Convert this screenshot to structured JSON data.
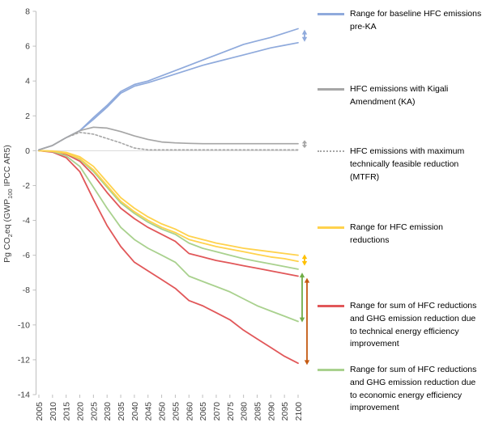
{
  "chart_data": {
    "type": "line",
    "title": "",
    "xlabel": "",
    "ylabel": "Pg CO2eq (GWP100 IPCC AR5)",
    "ylabel_parts": {
      "p1": "Pg CO",
      "s1": "2",
      "p2": "eq (GWP",
      "s2": "100",
      "p3": " IPCC AR5)"
    },
    "x": [
      2005,
      2010,
      2015,
      2020,
      2025,
      2030,
      2035,
      2040,
      2045,
      2050,
      2055,
      2060,
      2065,
      2070,
      2075,
      2080,
      2085,
      2090,
      2095,
      2100
    ],
    "ylim": [
      -14,
      8
    ],
    "yticks": [
      8,
      6,
      4,
      2,
      0,
      -2,
      -4,
      -6,
      -8,
      -10,
      -12,
      -14
    ],
    "grid": "zero-line-only",
    "legend_position": "right",
    "series": [
      {
        "name": "technical-ee-low",
        "color": "#e15759",
        "dash": "solid",
        "width": 1.8,
        "values": [
          0,
          -0.08,
          -0.4,
          -1.2,
          -2.8,
          -4.3,
          -5.5,
          -6.4,
          -6.9,
          -7.4,
          -7.9,
          -8.6,
          -8.9,
          -9.3,
          -9.7,
          -10.3,
          -10.8,
          -11.3,
          -11.8,
          -12.2
        ]
      },
      {
        "name": "technical-ee-high",
        "color": "#e15759",
        "dash": "solid",
        "width": 1.8,
        "values": [
          0,
          -0.05,
          -0.2,
          -0.6,
          -1.4,
          -2.4,
          -3.3,
          -3.9,
          -4.4,
          -4.8,
          -5.2,
          -5.9,
          -6.1,
          -6.3,
          -6.45,
          -6.6,
          -6.75,
          -6.9,
          -7.05,
          -7.2
        ]
      },
      {
        "name": "economic-ee-low",
        "color": "#a9d18e",
        "dash": "solid",
        "width": 1.8,
        "values": [
          0,
          -0.05,
          -0.3,
          -0.9,
          -2.1,
          -3.3,
          -4.4,
          -5.1,
          -5.6,
          -6.0,
          -6.4,
          -7.2,
          -7.5,
          -7.8,
          -8.1,
          -8.5,
          -8.9,
          -9.2,
          -9.5,
          -9.8
        ]
      },
      {
        "name": "economic-ee-high",
        "color": "#a9d18e",
        "dash": "solid",
        "width": 1.8,
        "values": [
          0,
          -0.03,
          -0.15,
          -0.5,
          -1.2,
          -2.1,
          -3.0,
          -3.6,
          -4.1,
          -4.5,
          -4.8,
          -5.3,
          -5.6,
          -5.8,
          -6.0,
          -6.2,
          -6.35,
          -6.5,
          -6.65,
          -6.8
        ]
      },
      {
        "name": "hfc-reduction-low",
        "color": "#ffd24d",
        "dash": "solid",
        "width": 1.8,
        "values": [
          0,
          -0.03,
          -0.15,
          -0.45,
          -1.1,
          -2.0,
          -2.9,
          -3.5,
          -4.0,
          -4.4,
          -4.7,
          -5.1,
          -5.3,
          -5.5,
          -5.65,
          -5.8,
          -5.95,
          -6.1,
          -6.2,
          -6.35
        ]
      },
      {
        "name": "hfc-reduction-high",
        "color": "#ffd24d",
        "dash": "solid",
        "width": 1.8,
        "values": [
          0,
          -0.02,
          -0.1,
          -0.35,
          -0.9,
          -1.8,
          -2.7,
          -3.3,
          -3.8,
          -4.2,
          -4.5,
          -4.9,
          -5.1,
          -5.3,
          -5.45,
          -5.6,
          -5.7,
          -5.8,
          -5.9,
          -6.0
        ]
      },
      {
        "name": "baseline-pre-ka-low",
        "color": "#8faadc",
        "dash": "solid",
        "width": 1.7,
        "values": [
          0.05,
          0.3,
          0.75,
          1.15,
          1.8,
          2.5,
          3.3,
          3.7,
          3.9,
          4.15,
          4.4,
          4.65,
          4.9,
          5.1,
          5.3,
          5.5,
          5.7,
          5.9,
          6.05,
          6.2
        ]
      },
      {
        "name": "baseline-pre-ka-high",
        "color": "#8faadc",
        "dash": "solid",
        "width": 1.7,
        "values": [
          0.05,
          0.3,
          0.75,
          1.15,
          1.9,
          2.6,
          3.4,
          3.8,
          4.0,
          4.3,
          4.6,
          4.9,
          5.2,
          5.5,
          5.8,
          6.1,
          6.3,
          6.5,
          6.75,
          7.0
        ]
      },
      {
        "name": "kigali-amendment",
        "color": "#a6a6a6",
        "dash": "solid",
        "width": 1.7,
        "values": [
          0.05,
          0.3,
          0.75,
          1.15,
          1.35,
          1.3,
          1.1,
          0.85,
          0.65,
          0.5,
          0.45,
          0.42,
          0.4,
          0.4,
          0.4,
          0.4,
          0.4,
          0.4,
          0.4,
          0.4
        ]
      },
      {
        "name": "mtfr",
        "color": "#a6a6a6",
        "dash": "dotted",
        "width": 1.6,
        "values": [
          0.05,
          0.3,
          0.75,
          1.05,
          0.95,
          0.7,
          0.45,
          0.15,
          0.05,
          0.05,
          0.05,
          0.05,
          0.05,
          0.05,
          0.05,
          0.05,
          0.05,
          0.05,
          0.05,
          0.05
        ]
      }
    ],
    "arrows": [
      {
        "name": "baseline-range-arrow",
        "color": "#8faadc",
        "from": 6.95,
        "to": 6.25,
        "dx": 8
      },
      {
        "name": "ka-range-arrow",
        "color": "#a6a6a6",
        "from": 0.6,
        "to": 0.15,
        "dx": 8
      },
      {
        "name": "hfc-reduction-range-arrow",
        "color": "#ffc000",
        "from": -5.95,
        "to": -6.6,
        "dx": 8
      },
      {
        "name": "economic-range-arrow",
        "color": "#70ad47",
        "from": -7.0,
        "to": -9.85,
        "dx": 5
      },
      {
        "name": "technical-range-arrow",
        "color": "#c55a11",
        "from": -7.3,
        "to": -12.3,
        "dx": 11
      }
    ],
    "legend": [
      {
        "label": "Range for baseline HFC emissions pre-KA",
        "color": "#8faadc",
        "style": "solid"
      },
      {
        "label": "HFC emissions with Kigali Amendment (KA)",
        "color": "#a6a6a6",
        "style": "solid"
      },
      {
        "label": "HFC emissions with maximum technically feasible reduction (MTFR)",
        "color": "#a6a6a6",
        "style": "dotted"
      },
      {
        "label": "Range for HFC emission reductions",
        "color": "#ffd24d",
        "style": "solid"
      },
      {
        "label": "Range for sum of HFC reductions and GHG emission reduction due to technical energy efficiency improvement",
        "color": "#e15759",
        "style": "solid"
      },
      {
        "label": "Range for sum of HFC reductions and GHG emission reduction due to economic energy efficiency improvement",
        "color": "#a9d18e",
        "style": "solid"
      }
    ]
  }
}
